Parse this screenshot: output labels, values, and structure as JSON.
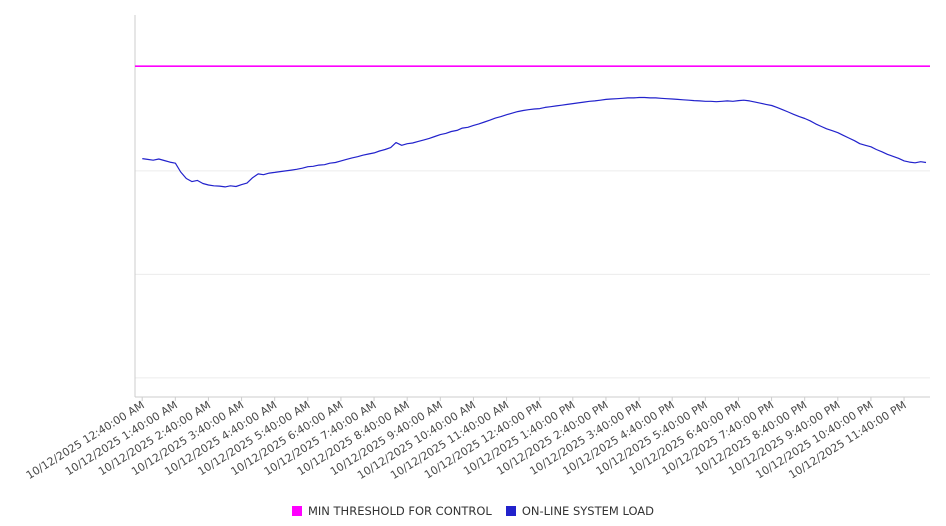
{
  "chart_data": {
    "type": "line",
    "title": "",
    "legend_position": "bottom",
    "grid": true,
    "x_axis": {
      "start_hour": 0.667,
      "interval_hours": 1,
      "label_rotation_deg": -32,
      "labels": [
        "10/12/2025 12:40:00 AM",
        "10/12/2025 1:40:00 AM",
        "10/12/2025 2:40:00 AM",
        "10/12/2025 3:40:00 AM",
        "10/12/2025 4:40:00 AM",
        "10/12/2025 5:40:00 AM",
        "10/12/2025 6:40:00 AM",
        "10/12/2025 7:40:00 AM",
        "10/12/2025 8:40:00 AM",
        "10/12/2025 9:40:00 AM",
        "10/12/2025 10:40:00 AM",
        "10/12/2025 11:40:00 AM",
        "10/12/2025 12:40:00 PM",
        "10/12/2025 1:40:00 PM",
        "10/12/2025 2:40:00 PM",
        "10/12/2025 3:40:00 PM",
        "10/12/2025 4:40:00 PM",
        "10/12/2025 5:40:00 PM",
        "10/12/2025 6:40:00 PM",
        "10/12/2025 7:40:00 PM",
        "10/12/2025 8:40:00 PM",
        "10/12/2025 9:40:00 PM",
        "10/12/2025 10:40:00 PM",
        "10/12/2025 11:40:00 PM"
      ]
    },
    "y_axis": {
      "min": 0,
      "max": 100,
      "tick_labels_visible": false,
      "gridline_values": [
        5.0,
        32.1,
        59.2,
        86.6
      ]
    },
    "series": [
      {
        "name": "MIN THRESHOLD FOR CONTROL",
        "kind": "threshold",
        "color": "#ff00ff",
        "value": 86.6
      },
      {
        "name": "ON-LINE SYSTEM LOAD",
        "kind": "line",
        "color": "#2222cc",
        "points": [
          [
            0.67,
            62.4
          ],
          [
            0.83,
            62.2
          ],
          [
            1.0,
            62.0
          ],
          [
            1.17,
            62.3
          ],
          [
            1.33,
            61.9
          ],
          [
            1.5,
            61.5
          ],
          [
            1.67,
            61.2
          ],
          [
            1.83,
            58.9
          ],
          [
            2.0,
            57.2
          ],
          [
            2.17,
            56.4
          ],
          [
            2.33,
            56.7
          ],
          [
            2.5,
            55.9
          ],
          [
            2.67,
            55.5
          ],
          [
            2.83,
            55.3
          ],
          [
            3.0,
            55.2
          ],
          [
            3.17,
            55.0
          ],
          [
            3.33,
            55.3
          ],
          [
            3.5,
            55.1
          ],
          [
            3.67,
            55.6
          ],
          [
            3.83,
            56.0
          ],
          [
            4.0,
            57.4
          ],
          [
            4.17,
            58.4
          ],
          [
            4.33,
            58.2
          ],
          [
            4.5,
            58.6
          ],
          [
            4.67,
            58.8
          ],
          [
            4.83,
            59.0
          ],
          [
            5.0,
            59.2
          ],
          [
            5.17,
            59.4
          ],
          [
            5.33,
            59.6
          ],
          [
            5.5,
            59.9
          ],
          [
            5.67,
            60.3
          ],
          [
            5.83,
            60.4
          ],
          [
            6.0,
            60.7
          ],
          [
            6.17,
            60.8
          ],
          [
            6.33,
            61.2
          ],
          [
            6.5,
            61.4
          ],
          [
            6.67,
            61.8
          ],
          [
            6.83,
            62.2
          ],
          [
            7.0,
            62.6
          ],
          [
            7.17,
            62.9
          ],
          [
            7.33,
            63.3
          ],
          [
            7.5,
            63.6
          ],
          [
            7.67,
            63.9
          ],
          [
            7.83,
            64.4
          ],
          [
            8.0,
            64.8
          ],
          [
            8.17,
            65.3
          ],
          [
            8.33,
            66.6
          ],
          [
            8.5,
            65.9
          ],
          [
            8.67,
            66.3
          ],
          [
            8.83,
            66.5
          ],
          [
            9.0,
            66.9
          ],
          [
            9.17,
            67.3
          ],
          [
            9.33,
            67.7
          ],
          [
            9.5,
            68.2
          ],
          [
            9.67,
            68.7
          ],
          [
            9.83,
            69.0
          ],
          [
            10.0,
            69.5
          ],
          [
            10.17,
            69.8
          ],
          [
            10.33,
            70.4
          ],
          [
            10.5,
            70.6
          ],
          [
            10.67,
            71.1
          ],
          [
            10.83,
            71.5
          ],
          [
            11.0,
            72.0
          ],
          [
            11.17,
            72.5
          ],
          [
            11.33,
            73.0
          ],
          [
            11.5,
            73.4
          ],
          [
            11.67,
            73.9
          ],
          [
            11.83,
            74.3
          ],
          [
            12.0,
            74.7
          ],
          [
            12.17,
            75.0
          ],
          [
            12.33,
            75.2
          ],
          [
            12.5,
            75.4
          ],
          [
            12.67,
            75.5
          ],
          [
            12.83,
            75.8
          ],
          [
            13.0,
            76.0
          ],
          [
            13.17,
            76.2
          ],
          [
            13.33,
            76.4
          ],
          [
            13.5,
            76.6
          ],
          [
            13.67,
            76.8
          ],
          [
            13.83,
            77.0
          ],
          [
            14.0,
            77.2
          ],
          [
            14.17,
            77.4
          ],
          [
            14.33,
            77.5
          ],
          [
            14.5,
            77.7
          ],
          [
            14.67,
            77.9
          ],
          [
            14.83,
            78.0
          ],
          [
            15.0,
            78.1
          ],
          [
            15.17,
            78.2
          ],
          [
            15.33,
            78.3
          ],
          [
            15.5,
            78.3
          ],
          [
            15.67,
            78.4
          ],
          [
            15.83,
            78.4
          ],
          [
            16.0,
            78.3
          ],
          [
            16.17,
            78.3
          ],
          [
            16.33,
            78.2
          ],
          [
            16.5,
            78.1
          ],
          [
            16.67,
            78.0
          ],
          [
            16.83,
            77.9
          ],
          [
            17.0,
            77.8
          ],
          [
            17.17,
            77.7
          ],
          [
            17.33,
            77.6
          ],
          [
            17.5,
            77.5
          ],
          [
            17.67,
            77.4
          ],
          [
            17.83,
            77.4
          ],
          [
            18.0,
            77.3
          ],
          [
            18.17,
            77.4
          ],
          [
            18.33,
            77.5
          ],
          [
            18.5,
            77.4
          ],
          [
            18.67,
            77.6
          ],
          [
            18.83,
            77.7
          ],
          [
            19.0,
            77.5
          ],
          [
            19.17,
            77.2
          ],
          [
            19.33,
            76.9
          ],
          [
            19.5,
            76.6
          ],
          [
            19.67,
            76.3
          ],
          [
            19.83,
            75.8
          ],
          [
            20.0,
            75.2
          ],
          [
            20.17,
            74.6
          ],
          [
            20.33,
            74.0
          ],
          [
            20.5,
            73.4
          ],
          [
            20.67,
            72.9
          ],
          [
            20.83,
            72.3
          ],
          [
            21.0,
            71.5
          ],
          [
            21.17,
            70.8
          ],
          [
            21.33,
            70.2
          ],
          [
            21.5,
            69.7
          ],
          [
            21.67,
            69.2
          ],
          [
            21.83,
            68.5
          ],
          [
            22.0,
            67.8
          ],
          [
            22.17,
            67.1
          ],
          [
            22.33,
            66.3
          ],
          [
            22.5,
            65.9
          ],
          [
            22.67,
            65.5
          ],
          [
            22.83,
            64.8
          ],
          [
            23.0,
            64.2
          ],
          [
            23.17,
            63.5
          ],
          [
            23.33,
            63.0
          ],
          [
            23.5,
            62.5
          ],
          [
            23.67,
            61.8
          ],
          [
            23.83,
            61.5
          ],
          [
            24.0,
            61.3
          ],
          [
            24.17,
            61.6
          ],
          [
            24.33,
            61.4
          ]
        ]
      }
    ]
  }
}
